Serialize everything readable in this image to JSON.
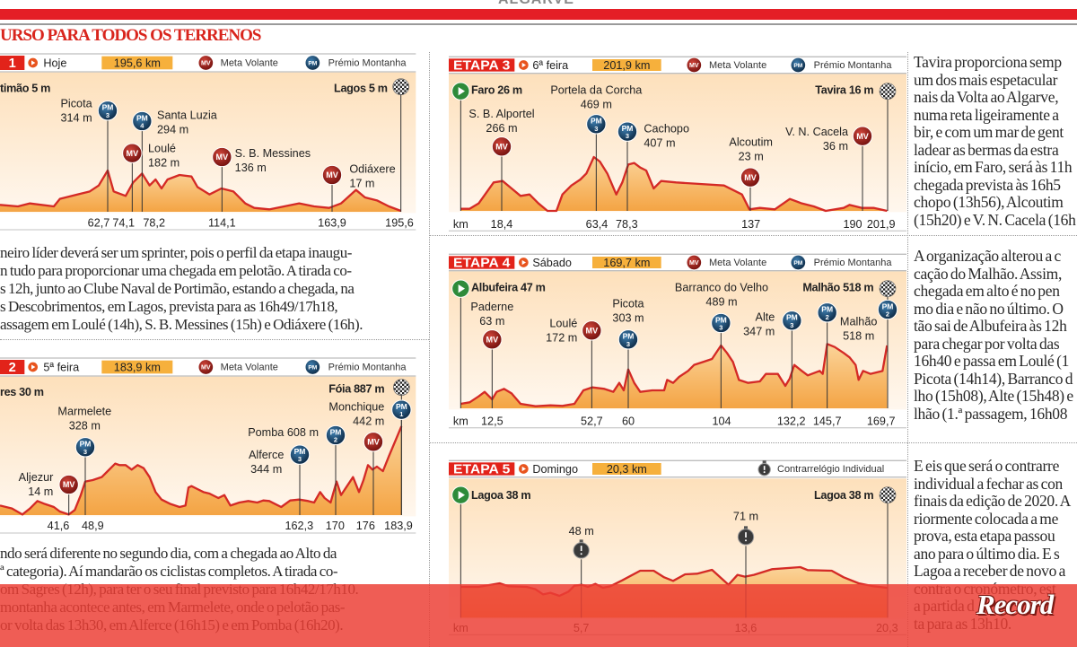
{
  "header": {
    "section": "ALGARVE",
    "title": "URSO PARA TODOS OS TERRENOS"
  },
  "legend": {
    "mv": "Meta Volante",
    "pm": "Prémio Montanha",
    "tt": "Contrarrelógio Individual",
    "mv_abbr": "MV",
    "pm_abbr": "PM"
  },
  "colors": {
    "brand_red": "#e41e26",
    "profile_line": "#d42a26",
    "distance_box": "#f6b03c",
    "mv_icon": "#9b1b17",
    "pm_icon": "#1b4b75",
    "start_icon": "#2e8b3a"
  },
  "stages": [
    {
      "label": "1",
      "day": "Hoje",
      "distance": "195,6 km",
      "start": "timão 5 m",
      "finish": "Lagos 5 m",
      "km_unit": "",
      "legend": [
        "mv",
        "pm"
      ],
      "markers": [
        {
          "type": "PM",
          "cat": "3",
          "lines": [
            "Picota",
            "314 m"
          ]
        },
        {
          "type": "PM",
          "cat": "4",
          "lines": [
            "Santa Luzia",
            "294 m"
          ]
        },
        {
          "type": "MV",
          "lines": [
            "Loulé",
            "182 m"
          ]
        },
        {
          "type": "MV",
          "lines": [
            "S. B. Messines",
            "136 m"
          ]
        },
        {
          "type": "MV",
          "lines": [
            "Odiáxere",
            "17 m"
          ]
        }
      ],
      "km_ticks": [
        "62,7",
        "74,1",
        "78,2",
        "114,1",
        "163,9",
        "195,6"
      ],
      "text": [
        "neiro líder deverá ser um sprinter, pois o perfil da etapa inaugu-",
        "n tudo para proporcionar uma chegada em pelotão. A tirada co-",
        "s 12h, junto ao Clube Naval de Portimão, estando a chegada, na",
        "s Descobrimentos, em Lagos, prevista para as 16h49/17h18,",
        "assagem em Loulé (14h), S. B. Messines (15h) e Odiáxere (16h)."
      ]
    },
    {
      "label": "2",
      "day": "5ª feira",
      "distance": "183,9 km",
      "start": "res 30 m",
      "finish": "Fóia 887 m",
      "km_unit": "",
      "legend": [
        "mv",
        "pm"
      ],
      "markers": [
        {
          "type": "MV",
          "lines": [
            "Aljezur",
            "14 m"
          ]
        },
        {
          "type": "PM",
          "cat": "3",
          "lines": [
            "Marmelete",
            "328 m"
          ]
        },
        {
          "type": "PM",
          "cat": "3",
          "lines": [
            "Alferce",
            "344 m"
          ]
        },
        {
          "type": "PM",
          "cat": "2",
          "lines": [
            "Pomba 608 m"
          ]
        },
        {
          "type": "MV",
          "lines": [
            "Monchique",
            "442 m"
          ]
        },
        {
          "type": "PM",
          "cat": "1",
          "lines": []
        }
      ],
      "km_ticks": [
        "41,6",
        "48,9",
        "162,3",
        "170",
        "176",
        "183,9"
      ],
      "text": [
        "ndo será diferente no segundo dia, com a chegada ao Alto da",
        "ª categoria). Aí mandarão os ciclistas completos. A tirada co-",
        "om Sagres (12h), para ter o seu final previsto para 16h42/17h10.",
        "montanha acontece antes, em Marmelete, onde o pelotão pas-",
        "or volta das 13h30, em Alferce (16h15) e em Pomba (16h20)."
      ]
    },
    {
      "label": "ETAPA 3",
      "day": "6ª feira",
      "distance": "201,9 km",
      "start": "Faro 26 m",
      "finish": "Tavira 16 m",
      "km_unit": "km",
      "legend": [
        "mv",
        "pm"
      ],
      "markers": [
        {
          "type": "MV",
          "lines": [
            "S. B. Alportel",
            "266 m"
          ]
        },
        {
          "type": "PM",
          "cat": "3",
          "lines": [
            "Portela da Corcha",
            "469 m"
          ]
        },
        {
          "type": "PM",
          "cat": "3",
          "lines": [
            "Cachopo",
            "407 m"
          ]
        },
        {
          "type": "MV",
          "lines": [
            "Alcoutim",
            "23 m"
          ]
        },
        {
          "type": "MV",
          "lines": [
            "V. N. Cacela",
            "36 m"
          ]
        }
      ],
      "km_ticks": [
        "18,4",
        "63,4",
        "78,3",
        "137",
        "190",
        "201,9"
      ],
      "text": [
        "Tavira proporciona semp",
        "um dos mais espetacular",
        "nais da Volta ao Algarve,",
        "numa reta ligeiramente a",
        "bir, e com um mar de gent",
        "ladear as bermas da estra",
        "início, em Faro, será às 11h",
        "chegada prevista às 16h5",
        "chopo (13h56), Alcoutim",
        "(15h20) e V. N. Cacela (16h"
      ]
    },
    {
      "label": "ETAPA 4",
      "day": "Sábado",
      "distance": "169,7 km",
      "start": "Albufeira 47 m",
      "finish": "Malhão 518 m",
      "km_unit": "km",
      "legend": [
        "mv",
        "pm"
      ],
      "markers": [
        {
          "type": "MV",
          "lines": [
            "Paderne",
            "63 m"
          ]
        },
        {
          "type": "MV",
          "lines": [
            "Loulé",
            "172 m"
          ]
        },
        {
          "type": "PM",
          "cat": "3",
          "lines": [
            "Picota",
            "303 m"
          ]
        },
        {
          "type": "PM",
          "cat": "3",
          "lines": [
            "Barranco do Velho",
            "489 m"
          ]
        },
        {
          "type": "PM",
          "cat": "3",
          "lines": [
            "Alte",
            "347 m"
          ]
        },
        {
          "type": "PM",
          "cat": "2",
          "lines": []
        },
        {
          "type": "PM",
          "cat": "2",
          "lines": [
            "Malhão",
            "518 m"
          ]
        }
      ],
      "km_ticks": [
        "12,5",
        "52,7",
        "60",
        "104",
        "132,2",
        "145,7",
        "169,7"
      ],
      "text": [
        "A organização alterou a c",
        "cação do Malhão. Assim,",
        "chegada em alto é no pen",
        "mo dia e não no último. O",
        "tão sai de Albufeira às 12h",
        "para chegar por volta das",
        "16h40 e passa em Loulé (1",
        "Picota (14h14), Barranco d",
        "lho (15h08), Alte (15h48) e",
        "lhão (1.ª passagem, 16h08"
      ]
    },
    {
      "label": "ETAPA 5",
      "day": "Domingo",
      "distance": "20,3 km",
      "start": "Lagoa 38 m",
      "finish": "Lagoa 38 m",
      "km_unit": "km",
      "legend": [
        "tt"
      ],
      "markers": [
        {
          "type": "TT",
          "lines": [
            "48 m"
          ]
        },
        {
          "type": "TT",
          "lines": [
            "71 m"
          ]
        }
      ],
      "km_ticks": [
        "5,7",
        "13,6",
        "20,3"
      ],
      "text": [
        "E eis que será o contrarre",
        "individual a fechar as con",
        "finais da edição de 2020. A",
        "riormente colocada a me",
        "prova, esta etapa passou",
        "ano para o último dia. E s",
        "Lagoa a receber de novo a",
        "contra o cronómetro, est",
        "a partida d",
        "ta para as 13h10."
      ]
    }
  ],
  "brand": "Record"
}
